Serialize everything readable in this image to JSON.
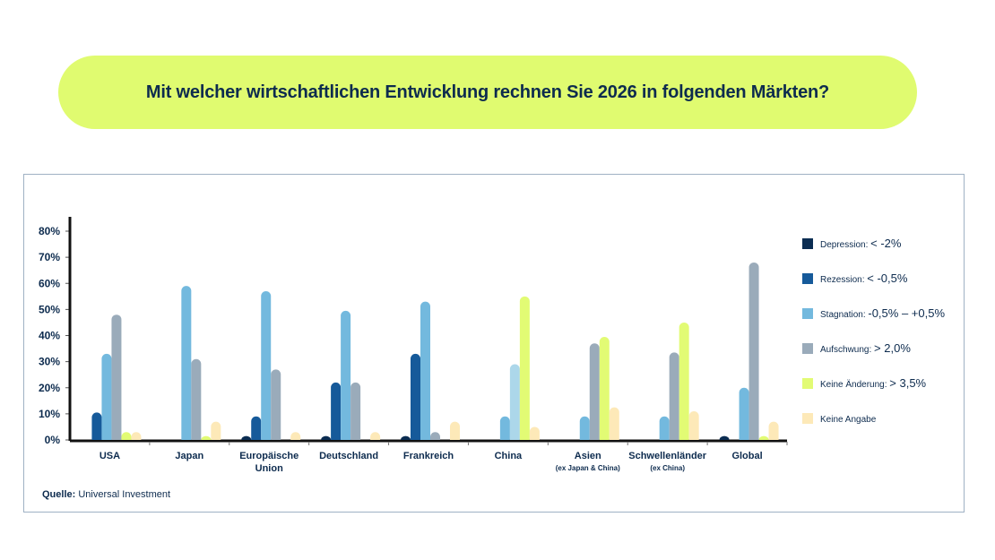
{
  "title": "Mit welcher wirtschaftlichen Entwicklung rechnen Sie 2026 in folgenden Märkten?",
  "source_label": "Quelle:",
  "source_text": "Universal Investment",
  "chart_data": {
    "type": "bar",
    "title": "Mit welcher wirtschaftlichen Entwicklung rechnen Sie 2026 in folgenden Märkten?",
    "xlabel": "",
    "ylabel": "",
    "ylim": [
      0,
      80
    ],
    "yticks": [
      "0%",
      "10%",
      "20%",
      "30%",
      "40%",
      "50%",
      "60%",
      "70%",
      "80%"
    ],
    "grid": false,
    "legend_position": "right",
    "categories": [
      {
        "label": "USA",
        "sub": ""
      },
      {
        "label": "Japan",
        "sub": ""
      },
      {
        "label": "Europäische Union",
        "sub": ""
      },
      {
        "label": "Deutschland",
        "sub": ""
      },
      {
        "label": "Frankreich",
        "sub": ""
      },
      {
        "label": "China",
        "sub": ""
      },
      {
        "label": "Asien",
        "sub": "(ex Japan & China)"
      },
      {
        "label": "Schwellenländer",
        "sub": "(ex China)"
      },
      {
        "label": "Global",
        "sub": ""
      }
    ],
    "series": [
      {
        "name": "Depression:",
        "range": "< -2%",
        "color": "#0b2d52",
        "values": [
          0,
          0,
          1.5,
          1.5,
          1.5,
          0,
          0,
          0,
          1.5
        ]
      },
      {
        "name": "Rezession:",
        "range": "< -0,5%",
        "color": "#165a9a",
        "values": [
          10.5,
          0,
          9,
          22,
          33,
          0,
          0,
          0,
          0
        ]
      },
      {
        "name": "Stagnation:",
        "range": "-0,5% – +0,5%",
        "color": "#73b9de",
        "values": [
          33,
          59,
          57,
          49.5,
          53,
          9,
          9,
          9,
          20
        ]
      },
      {
        "name": "Aufschwung:",
        "range": "> 2,0%",
        "color": "#9aabba",
        "values": [
          48,
          31,
          27,
          22,
          3,
          29,
          37,
          33.5,
          68
        ]
      },
      {
        "name": "Keine Änderung:",
        "range": "> 3,5%",
        "color": "#e2fb74",
        "values": [
          3,
          1.5,
          0,
          0,
          0,
          55,
          39.5,
          45,
          1.5
        ]
      },
      {
        "name": "Keine Angabe",
        "range": "",
        "color": "#fde9b8",
        "values": [
          3,
          7,
          3,
          3,
          7,
          5,
          12.5,
          11,
          7
        ]
      }
    ],
    "china_aufschwung_color": "#acd7ea"
  }
}
